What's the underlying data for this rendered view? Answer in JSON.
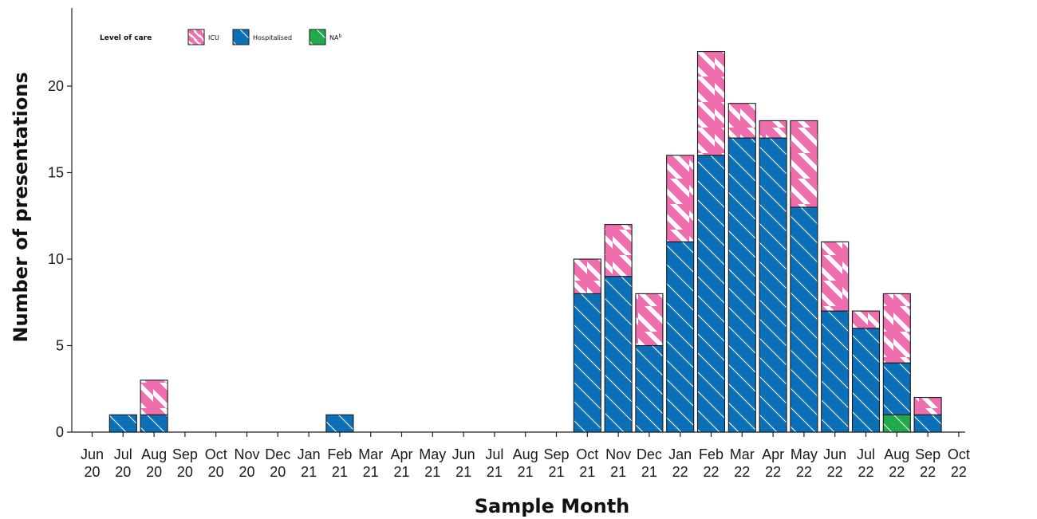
{
  "chart_data": {
    "type": "bar",
    "stacked": true,
    "title": "",
    "xlabel": "Sample Month",
    "ylabel": "Number of presentations",
    "ylim": [
      0,
      24
    ],
    "yticks": [
      0,
      5,
      10,
      15,
      20
    ],
    "grid": false,
    "legend": {
      "title": "Level of care",
      "position": "top-left",
      "entries": [
        {
          "label": "ICU",
          "sup": ""
        },
        {
          "label": "Hospitalised",
          "sup": ""
        },
        {
          "label": "NA",
          "sup": "b"
        }
      ]
    },
    "categories": [
      [
        "Jun",
        "20"
      ],
      [
        "Jul",
        "20"
      ],
      [
        "Aug",
        "20"
      ],
      [
        "Sep",
        "20"
      ],
      [
        "Oct",
        "20"
      ],
      [
        "Nov",
        "20"
      ],
      [
        "Dec",
        "20"
      ],
      [
        "Jan",
        "21"
      ],
      [
        "Feb",
        "21"
      ],
      [
        "Mar",
        "21"
      ],
      [
        "Apr",
        "21"
      ],
      [
        "May",
        "21"
      ],
      [
        "Jun",
        "21"
      ],
      [
        "Jul",
        "21"
      ],
      [
        "Aug",
        "21"
      ],
      [
        "Sep",
        "21"
      ],
      [
        "Oct",
        "21"
      ],
      [
        "Nov",
        "21"
      ],
      [
        "Dec",
        "21"
      ],
      [
        "Jan",
        "22"
      ],
      [
        "Feb",
        "22"
      ],
      [
        "Mar",
        "22"
      ],
      [
        "Apr",
        "22"
      ],
      [
        "May",
        "22"
      ],
      [
        "Jun",
        "22"
      ],
      [
        "Jul",
        "22"
      ],
      [
        "Aug",
        "22"
      ],
      [
        "Sep",
        "22"
      ],
      [
        "Oct",
        "22"
      ]
    ],
    "series": [
      {
        "name": "NA",
        "color": "#1faa4b",
        "pattern": "hatch-white",
        "values": [
          0,
          0,
          0,
          0,
          0,
          0,
          0,
          0,
          0,
          0,
          0,
          0,
          0,
          0,
          0,
          0,
          0,
          0,
          0,
          0,
          0,
          0,
          0,
          0,
          0,
          0,
          1,
          0,
          0
        ]
      },
      {
        "name": "Hospitalised",
        "color": "#0b70b8",
        "pattern": "hatch-white",
        "values": [
          0,
          1,
          1,
          0,
          0,
          0,
          0,
          0,
          1,
          0,
          0,
          0,
          0,
          0,
          0,
          0,
          8,
          9,
          5,
          11,
          16,
          17,
          17,
          13,
          7,
          6,
          3,
          1,
          0
        ]
      },
      {
        "name": "ICU",
        "color": "#ef6fae",
        "pattern": "stripe-pink-white",
        "values": [
          0,
          0,
          2,
          0,
          0,
          0,
          0,
          0,
          0,
          0,
          0,
          0,
          0,
          0,
          0,
          0,
          2,
          3,
          3,
          5,
          6,
          2,
          1,
          5,
          4,
          1,
          4,
          1,
          0
        ]
      }
    ]
  }
}
